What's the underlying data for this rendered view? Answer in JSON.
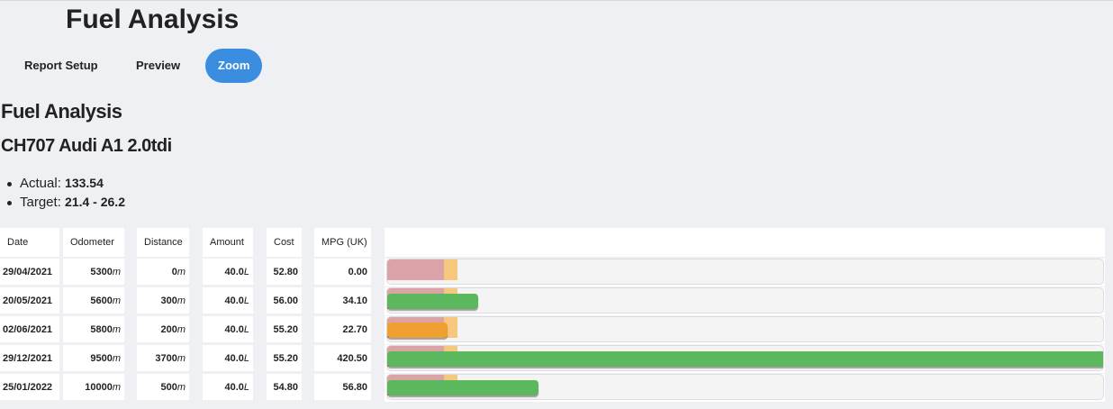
{
  "header": {
    "title": "Fuel Analysis"
  },
  "tabs": [
    "Report Setup",
    "Preview",
    "Zoom"
  ],
  "active_tab": 2,
  "report": {
    "heading": "Fuel Analysis",
    "vehicle": "CH707 Audi A1 2.0tdi",
    "actual": {
      "label": "Actual:",
      "value": 133.54
    },
    "target": {
      "label": "Target:",
      "min": 21.4,
      "joiner": "-",
      "max": 26.2
    }
  },
  "table": {
    "columns": [
      {
        "label": "Date"
      },
      {
        "label": "Odometer",
        "unit": "m"
      },
      {
        "label": "Distance",
        "unit": "m"
      },
      {
        "label": "Amount",
        "unit": "L"
      },
      {
        "label": "Cost"
      },
      {
        "label": "MPG (UK)"
      }
    ],
    "rows": [
      [
        "29/04/2021",
        "5300",
        "0",
        "40.0",
        "52.80"
      ],
      [
        "20/05/2021",
        "5600",
        "300",
        "40.0",
        "56.00"
      ],
      [
        "02/06/2021",
        "5800",
        "200",
        "40.0",
        "55.20"
      ],
      [
        "29/12/2021",
        "9500",
        "3700",
        "40.0",
        "55.20"
      ],
      [
        "25/01/2022",
        "10000",
        "500",
        "40.0",
        "54.80"
      ]
    ],
    "mpg": [
      0,
      34.1,
      22.7,
      420.5,
      56.8
    ],
    "mpg_labels": [
      "0.00",
      "34.10",
      "22.70",
      "420.50",
      "56.80"
    ],
    "colors": {
      "good": "#5cb85c",
      "warn": "#f0a030",
      "band_low": "#d9a3a7",
      "band_target": "#f7c77e"
    }
  }
}
